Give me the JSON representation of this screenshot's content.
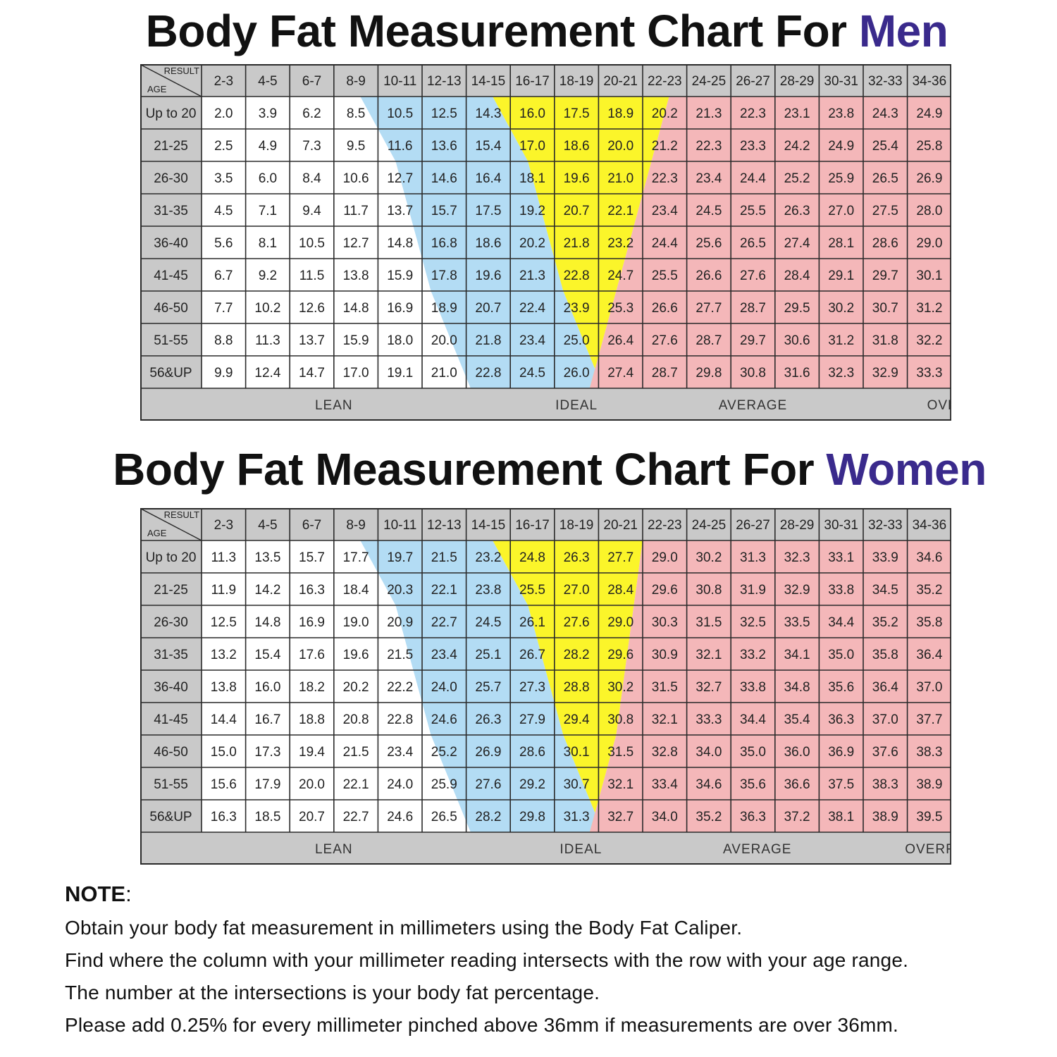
{
  "titles": {
    "men": {
      "prefix": "Body Fat Measurement Chart For ",
      "accent": "Men"
    },
    "women": {
      "prefix": "Body Fat Measurement Chart For ",
      "accent": "Women"
    }
  },
  "colors": {
    "lean": "#ffffff",
    "ideal": "#b3dcf4",
    "average": "#fbf52a",
    "overfat": "#f4b7b9",
    "header": "#c9c9c9",
    "accent": "#3a2a8c"
  },
  "chart_data": [
    {
      "type": "table",
      "title": "Body Fat Measurement Chart For Men",
      "corner": {
        "top": "RESULT",
        "bottom": "AGE"
      },
      "columns": [
        "2-3",
        "4-5",
        "6-7",
        "8-9",
        "10-11",
        "12-13",
        "14-15",
        "16-17",
        "18-19",
        "20-21",
        "22-23",
        "24-25",
        "26-27",
        "28-29",
        "30-31",
        "32-33",
        "34-36"
      ],
      "rows": [
        "Up to 20",
        "21-25",
        "26-30",
        "31-35",
        "36-40",
        "41-45",
        "46-50",
        "51-55",
        "56&UP"
      ],
      "values": [
        [
          "2.0",
          "3.9",
          "6.2",
          "8.5",
          "10.5",
          "12.5",
          "14.3",
          "16.0",
          "17.5",
          "18.9",
          "20.2",
          "21.3",
          "22.3",
          "23.1",
          "23.8",
          "24.3",
          "24.9"
        ],
        [
          "2.5",
          "4.9",
          "7.3",
          "9.5",
          "11.6",
          "13.6",
          "15.4",
          "17.0",
          "18.6",
          "20.0",
          "21.2",
          "22.3",
          "23.3",
          "24.2",
          "24.9",
          "25.4",
          "25.8"
        ],
        [
          "3.5",
          "6.0",
          "8.4",
          "10.6",
          "12.7",
          "14.6",
          "16.4",
          "18.1",
          "19.6",
          "21.0",
          "22.3",
          "23.4",
          "24.4",
          "25.2",
          "25.9",
          "26.5",
          "26.9"
        ],
        [
          "4.5",
          "7.1",
          "9.4",
          "11.7",
          "13.7",
          "15.7",
          "17.5",
          "19.2",
          "20.7",
          "22.1",
          "23.4",
          "24.5",
          "25.5",
          "26.3",
          "27.0",
          "27.5",
          "28.0"
        ],
        [
          "5.6",
          "8.1",
          "10.5",
          "12.7",
          "14.8",
          "16.8",
          "18.6",
          "20.2",
          "21.8",
          "23.2",
          "24.4",
          "25.6",
          "26.5",
          "27.4",
          "28.1",
          "28.6",
          "29.0"
        ],
        [
          "6.7",
          "9.2",
          "11.5",
          "13.8",
          "15.9",
          "17.8",
          "19.6",
          "21.3",
          "22.8",
          "24.7",
          "25.5",
          "26.6",
          "27.6",
          "28.4",
          "29.1",
          "29.7",
          "30.1"
        ],
        [
          "7.7",
          "10.2",
          "12.6",
          "14.8",
          "16.9",
          "18.9",
          "20.7",
          "22.4",
          "23.9",
          "25.3",
          "26.6",
          "27.7",
          "28.7",
          "29.5",
          "30.2",
          "30.7",
          "31.2"
        ],
        [
          "8.8",
          "11.3",
          "13.7",
          "15.9",
          "18.0",
          "20.0",
          "21.8",
          "23.4",
          "25.0",
          "26.4",
          "27.6",
          "28.7",
          "29.7",
          "30.6",
          "31.2",
          "31.8",
          "32.2"
        ],
        [
          "9.9",
          "12.4",
          "14.7",
          "17.0",
          "19.1",
          "21.0",
          "22.8",
          "24.5",
          "26.0",
          "27.4",
          "28.7",
          "29.8",
          "30.8",
          "31.6",
          "32.3",
          "32.9",
          "33.3"
        ]
      ],
      "zone_bounds": [
        [
          3.6,
          6.6,
          10.6
        ],
        [
          4.0,
          7.0,
          10.4
        ],
        [
          4.4,
          7.4,
          10.2
        ],
        [
          4.6,
          7.6,
          10.0
        ],
        [
          4.8,
          7.8,
          9.8
        ],
        [
          5.0,
          8.0,
          9.6
        ],
        [
          5.2,
          8.2,
          9.4
        ],
        [
          5.5,
          8.5,
          9.2
        ],
        [
          5.8,
          8.8,
          9.0
        ]
      ],
      "zones": [
        "LEAN",
        "IDEAL",
        "AVERAGE",
        "OVERFAT"
      ],
      "zone_label_cols": [
        3.0,
        8.5,
        12.5,
        17.2
      ]
    },
    {
      "type": "table",
      "title": "Body Fat Measurement Chart For Women",
      "corner": {
        "top": "RESULT",
        "bottom": "AGE"
      },
      "columns": [
        "2-3",
        "4-5",
        "6-7",
        "8-9",
        "10-11",
        "12-13",
        "14-15",
        "16-17",
        "18-19",
        "20-21",
        "22-23",
        "24-25",
        "26-27",
        "28-29",
        "30-31",
        "32-33",
        "34-36"
      ],
      "rows": [
        "Up to 20",
        "21-25",
        "26-30",
        "31-35",
        "36-40",
        "41-45",
        "46-50",
        "51-55",
        "56&UP"
      ],
      "values": [
        [
          "11.3",
          "13.5",
          "15.7",
          "17.7",
          "19.7",
          "21.5",
          "23.2",
          "24.8",
          "26.3",
          "27.7",
          "29.0",
          "30.2",
          "31.3",
          "32.3",
          "33.1",
          "33.9",
          "34.6"
        ],
        [
          "11.9",
          "14.2",
          "16.3",
          "18.4",
          "20.3",
          "22.1",
          "23.8",
          "25.5",
          "27.0",
          "28.4",
          "29.6",
          "30.8",
          "31.9",
          "32.9",
          "33.8",
          "34.5",
          "35.2"
        ],
        [
          "12.5",
          "14.8",
          "16.9",
          "19.0",
          "20.9",
          "22.7",
          "24.5",
          "26.1",
          "27.6",
          "29.0",
          "30.3",
          "31.5",
          "32.5",
          "33.5",
          "34.4",
          "35.2",
          "35.8"
        ],
        [
          "13.2",
          "15.4",
          "17.6",
          "19.6",
          "21.5",
          "23.4",
          "25.1",
          "26.7",
          "28.2",
          "29.6",
          "30.9",
          "32.1",
          "33.2",
          "34.1",
          "35.0",
          "35.8",
          "36.4"
        ],
        [
          "13.8",
          "16.0",
          "18.2",
          "20.2",
          "22.2",
          "24.0",
          "25.7",
          "27.3",
          "28.8",
          "30.2",
          "31.5",
          "32.7",
          "33.8",
          "34.8",
          "35.6",
          "36.4",
          "37.0"
        ],
        [
          "14.4",
          "16.7",
          "18.8",
          "20.8",
          "22.8",
          "24.6",
          "26.3",
          "27.9",
          "29.4",
          "30.8",
          "32.1",
          "33.3",
          "34.4",
          "35.4",
          "36.3",
          "37.0",
          "37.7"
        ],
        [
          "15.0",
          "17.3",
          "19.4",
          "21.5",
          "23.4",
          "25.2",
          "26.9",
          "28.6",
          "30.1",
          "31.5",
          "32.8",
          "34.0",
          "35.0",
          "36.0",
          "36.9",
          "37.6",
          "38.3"
        ],
        [
          "15.6",
          "17.9",
          "20.0",
          "22.1",
          "24.0",
          "25.9",
          "27.6",
          "29.2",
          "30.7",
          "32.1",
          "33.4",
          "34.6",
          "35.6",
          "36.6",
          "37.5",
          "38.3",
          "38.9"
        ],
        [
          "16.3",
          "18.5",
          "20.7",
          "22.7",
          "24.6",
          "26.5",
          "28.2",
          "29.8",
          "31.3",
          "32.7",
          "34.0",
          "35.2",
          "36.3",
          "37.2",
          "38.1",
          "38.9",
          "39.5"
        ]
      ],
      "zone_bounds": [
        [
          3.6,
          6.6,
          10.0
        ],
        [
          4.0,
          7.0,
          9.9
        ],
        [
          4.4,
          7.4,
          9.8
        ],
        [
          4.6,
          7.6,
          9.7
        ],
        [
          4.8,
          7.8,
          9.6
        ],
        [
          5.0,
          8.0,
          9.5
        ],
        [
          5.2,
          8.2,
          9.4
        ],
        [
          5.5,
          8.5,
          9.2
        ],
        [
          5.8,
          8.8,
          9.0
        ]
      ],
      "zones": [
        "LEAN",
        "IDEAL",
        "AVERAGE",
        "OVERFAT"
      ],
      "zone_label_cols": [
        3.0,
        8.6,
        12.6,
        16.7
      ]
    }
  ],
  "note": {
    "heading": "NOTE",
    "colon": ":",
    "lines": [
      "Obtain your body fat measurement in millimeters using the Body Fat Caliper.",
      "Find where the column with your millimeter reading intersects with the row with your age range.",
      "The number at the intersections is your body fat percentage.",
      "Please add 0.25% for every millimeter pinched above 36mm if measurements are over 36mm."
    ]
  }
}
